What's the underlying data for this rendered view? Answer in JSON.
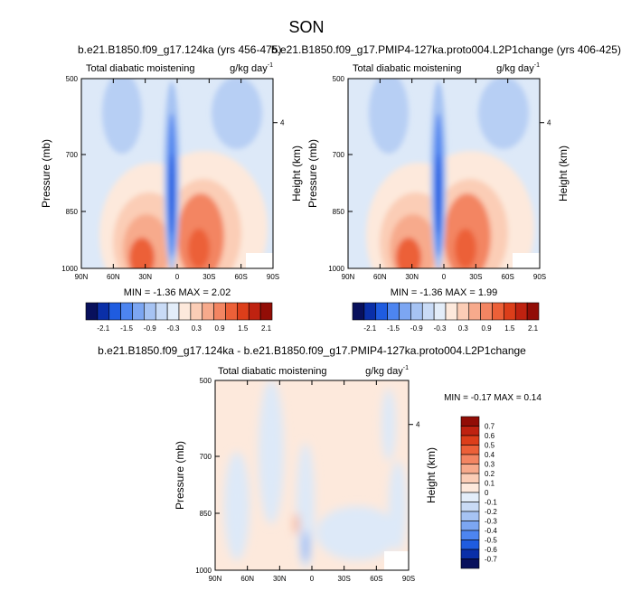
{
  "figure_title": "SON",
  "panels": [
    {
      "id": "p1",
      "title": "b.e21.B1850.f09_g17.124ka (yrs 456-475)",
      "left_label": "Total diabatic moistening",
      "right_label": "g/kg day",
      "right_label_sup": "-1",
      "ylabel": "Pressure (mb)",
      "ylabel_right": "Height (km)",
      "stats": "MIN = -1.36 MAX = 2.02"
    },
    {
      "id": "p2",
      "title": "b.e21.B1850.f09_g17.PMIP4-127ka.proto004.L2P1change (yrs 406-425)",
      "left_label": "Total diabatic moistening",
      "right_label": "g/kg day",
      "right_label_sup": "-1",
      "ylabel": "Pressure (mb)",
      "ylabel_right": "Height (km)",
      "stats": "MIN = -1.36 MAX = 1.99"
    },
    {
      "id": "p3",
      "title": "b.e21.B1850.f09_g17.124ka - b.e21.B1850.f09_g17.PMIP4-127ka.proto004.L2P1change",
      "left_label": "Total diabatic moistening",
      "right_label": "g/kg day",
      "right_label_sup": "-1",
      "ylabel": "Pressure (mb)",
      "ylabel_right": "Height (km)",
      "stats": "MIN = -0.17 MAX = 0.14"
    }
  ],
  "chart_data": [
    {
      "type": "heatmap",
      "title": "b.e21.B1850.f09_g17.124ka (yrs 456-475)",
      "x_ticks": [
        "90N",
        "60N",
        "30N",
        "0",
        "30S",
        "60S",
        "90S"
      ],
      "x_tick_values": [
        90,
        60,
        30,
        0,
        -30,
        -60,
        -90
      ],
      "y_ticks": [
        "500",
        "700",
        "850",
        "1000"
      ],
      "y_tick_values": [
        500,
        700,
        850,
        1000
      ],
      "right_ticks": [
        "4"
      ],
      "xlim": [
        90,
        -90
      ],
      "ylim": [
        1000,
        500
      ],
      "min": -1.36,
      "max": 2.02
    },
    {
      "type": "heatmap",
      "title": "b.e21.B1850.f09_g17.PMIP4-127ka.proto004.L2P1change (yrs 406-425)",
      "x_ticks": [
        "90N",
        "60N",
        "30N",
        "0",
        "30S",
        "60S",
        "90S"
      ],
      "x_tick_values": [
        90,
        60,
        30,
        0,
        -30,
        -60,
        -90
      ],
      "y_ticks": [
        "500",
        "700",
        "850",
        "1000"
      ],
      "y_tick_values": [
        500,
        700,
        850,
        1000
      ],
      "right_ticks": [
        "4"
      ],
      "xlim": [
        90,
        -90
      ],
      "ylim": [
        1000,
        500
      ],
      "min": -1.36,
      "max": 1.99
    },
    {
      "type": "heatmap",
      "title": "b.e21.B1850.f09_g17.124ka - b.e21.B1850.f09_g17.PMIP4-127ka.proto004.L2P1change",
      "x_ticks": [
        "90N",
        "60N",
        "30N",
        "0",
        "30S",
        "60S",
        "90S"
      ],
      "x_tick_values": [
        90,
        60,
        30,
        0,
        -30,
        -60,
        -90
      ],
      "y_ticks": [
        "500",
        "700",
        "850",
        "1000"
      ],
      "y_tick_values": [
        500,
        700,
        850,
        1000
      ],
      "right_ticks": [
        "4"
      ],
      "xlim": [
        90,
        -90
      ],
      "ylim": [
        1000,
        500
      ],
      "min": -0.17,
      "max": 0.14
    }
  ],
  "colorbar_main": {
    "orientation": "horizontal",
    "labels": [
      "-2.1",
      "-1.5",
      "-0.9",
      "-0.3",
      "0.3",
      "0.9",
      "1.5",
      "2.1"
    ],
    "colors": [
      "#08105c",
      "#0a2fa8",
      "#1f5ce0",
      "#4d85f0",
      "#7ca6f2",
      "#a6c3f3",
      "#c9dbf6",
      "#e3edf9",
      "#fde9dc",
      "#fbcdb6",
      "#f7aa8c",
      "#f38562",
      "#ec6038",
      "#dc3e1a",
      "#bf2210",
      "#920d06"
    ]
  },
  "colorbar_diff": {
    "orientation": "vertical",
    "labels": [
      "0.7",
      "0.6",
      "0.5",
      "0.4",
      "0.3",
      "0.2",
      "0.1",
      "0",
      "-0.1",
      "-0.2",
      "-0.3",
      "-0.4",
      "-0.5",
      "-0.6",
      "-0.7"
    ],
    "colors": [
      "#920d06",
      "#bf2210",
      "#dc3e1a",
      "#ec6038",
      "#f38562",
      "#f7aa8c",
      "#fbcdb6",
      "#fde9dc",
      "#e3edf9",
      "#c9dbf6",
      "#a6c3f3",
      "#7ca6f2",
      "#4d85f0",
      "#1f5ce0",
      "#0a2fa8",
      "#08105c"
    ]
  }
}
